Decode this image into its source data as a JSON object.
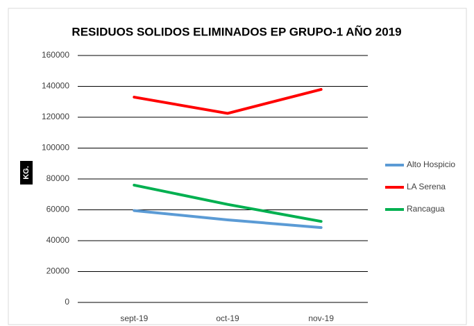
{
  "chart_data": {
    "type": "line",
    "title": "RESIDUOS SOLIDOS ELIMINADOS EP GRUPO-1 AÑO 2019",
    "y_label": "KG.",
    "categories": [
      "sept-19",
      "oct-19",
      "nov-19"
    ],
    "series": [
      {
        "name": "Alto Hospicio",
        "color": "#5b9bd5",
        "values": [
          59500,
          53500,
          48500
        ]
      },
      {
        "name": "LA Serena",
        "color": "#ff0000",
        "values": [
          133000,
          122500,
          138000
        ]
      },
      {
        "name": "Rancagua",
        "color": "#00b050",
        "values": [
          76000,
          63500,
          52500
        ]
      }
    ],
    "ylim": [
      0,
      160000
    ],
    "yticks": [
      0,
      20000,
      40000,
      60000,
      80000,
      100000,
      120000,
      140000,
      160000
    ],
    "grid": true,
    "legend": "right"
  }
}
